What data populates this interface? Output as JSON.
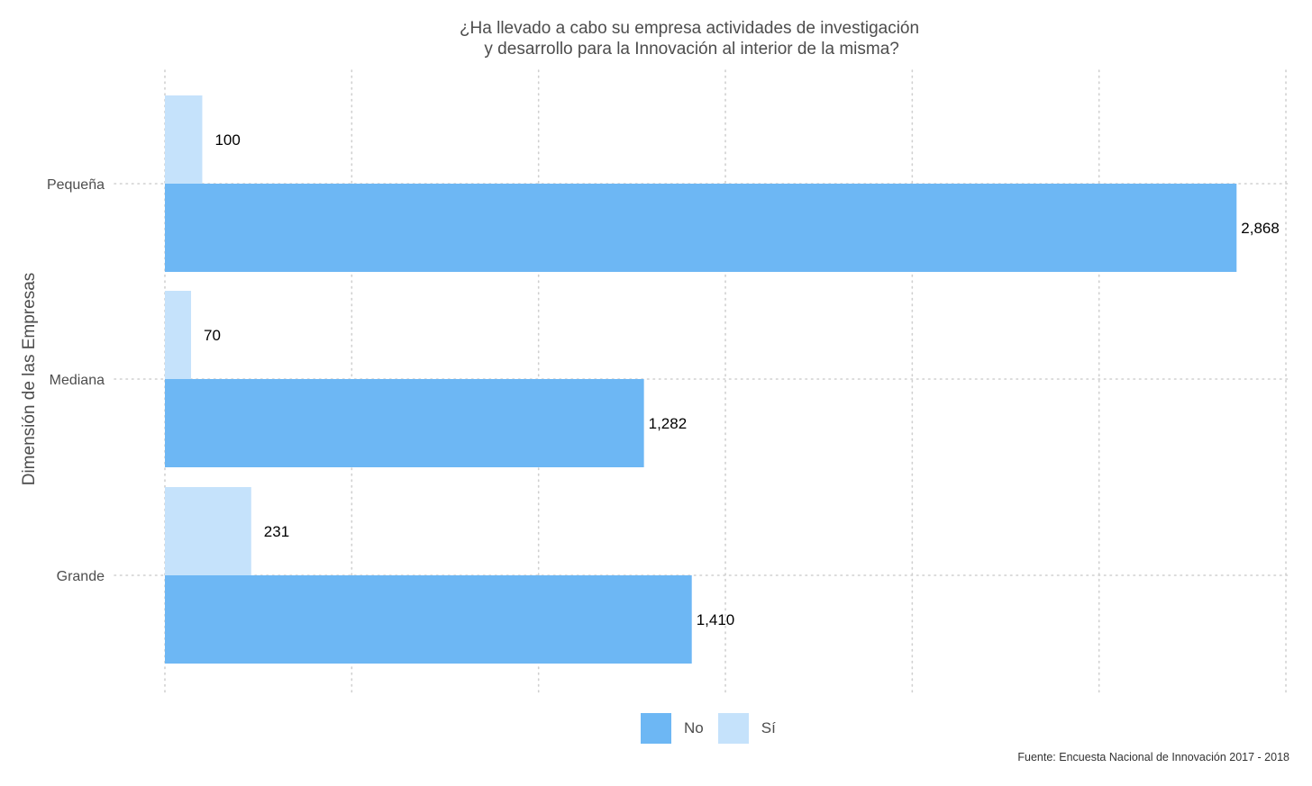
{
  "chart_data": {
    "type": "bar",
    "orientation": "horizontal",
    "title": "¿Ha llevado a cabo su empresa actividades de investigación\n y desarrollo para la Innovación al interior de la misma?",
    "xlabel": "",
    "ylabel": "Dimensión de las Empresas",
    "categories": [
      "Pequeña",
      "Mediana",
      "Grande"
    ],
    "series": [
      {
        "name": "No",
        "color": "#6db7f4",
        "values": [
          2868,
          1282,
          1410
        ],
        "labels": [
          "2,868",
          "1,282",
          "1,410"
        ]
      },
      {
        "name": "Sí",
        "color": "#c5e2fb",
        "values": [
          100,
          70,
          231
        ],
        "labels": [
          "100",
          "70",
          "231"
        ]
      }
    ],
    "xlim": [
      0,
      3000
    ],
    "x_gridlines": [
      0,
      500,
      1000,
      1500,
      2000,
      2500,
      3000
    ],
    "x_tick_labels_shown": false,
    "grid": "dotted",
    "legend_position": "bottom",
    "caption": "Fuente: Encuesta Nacional de Innovación 2017 - 2018"
  }
}
